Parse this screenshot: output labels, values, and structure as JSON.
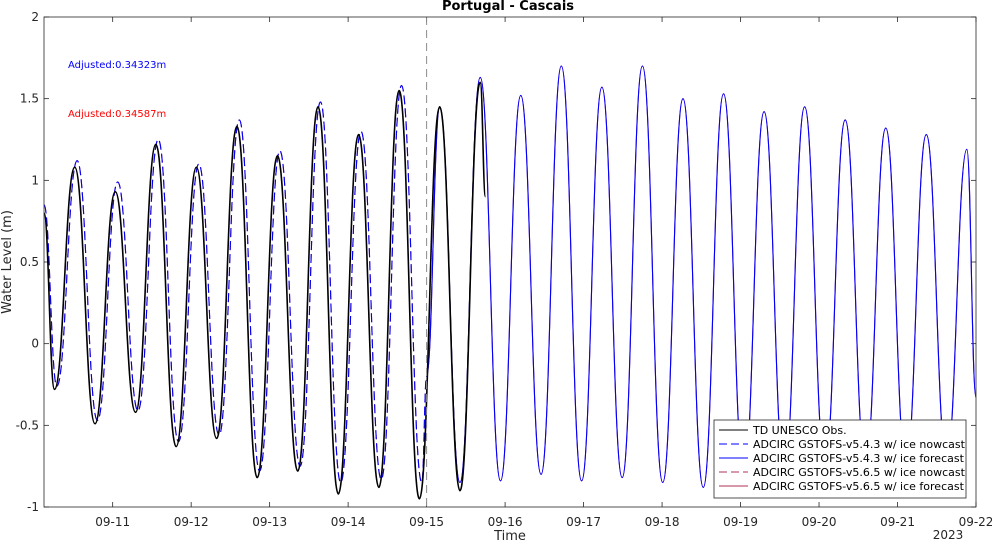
{
  "chart_data": {
    "type": "line",
    "title": "Portugal - Cascais",
    "xlabel": "Time",
    "ylabel": "Water Level (m)",
    "xlim": [
      "2023-09-10 03:00",
      "2023-09-22 00:00"
    ],
    "ylim": [
      -1,
      2
    ],
    "yticks": [
      "-1",
      "-0.5",
      "0",
      "0.5",
      "1",
      "1.5",
      "2"
    ],
    "xticks": [
      "09-11",
      "09-12",
      "09-13",
      "09-14",
      "09-15",
      "09-16",
      "09-17",
      "09-18",
      "09-19",
      "09-20",
      "09-21",
      "09-22"
    ],
    "year_label": "2023",
    "nowcast_end": "2023-09-15 00:00",
    "annotations": [
      {
        "text": "Adjusted:0.34323m",
        "color": "#0000ff"
      },
      {
        "text": "Adjusted:0.34587m",
        "color": "#ff0000"
      }
    ],
    "legend": {
      "location": "bottom-right",
      "entries": [
        {
          "label": "TD UNESCO Obs.",
          "color": "#000000",
          "dash": "solid"
        },
        {
          "label": "ADCIRC GSTOFS-v5.4.3 w/ ice nowcast",
          "color": "#0000ff",
          "dash": "dashed"
        },
        {
          "label": "ADCIRC GSTOFS-v5.4.3 w/ ice forecast",
          "color": "#0000ff",
          "dash": "solid"
        },
        {
          "label": "ADCIRC GSTOFS-v5.6.5 w/ ice nowcast",
          "color": "#b0305a",
          "dash": "dashed"
        },
        {
          "label": "ADCIRC GSTOFS-v5.6.5 w/ ice forecast",
          "color": "#b0305a",
          "dash": "solid"
        }
      ]
    },
    "series": [
      {
        "name": "TD UNESCO Obs.",
        "x": [
          "09-10 03:00",
          "09-10 06:12",
          "09-10 12:24",
          "09-10 18:36",
          "09-11 00:48",
          "09-11 07:00",
          "09-11 13:12",
          "09-11 19:24",
          "09-12 01:36",
          "09-12 07:48",
          "09-12 14:00",
          "09-12 20:12",
          "09-13 02:24",
          "09-13 08:36",
          "09-13 14:48",
          "09-13 21:00",
          "09-14 03:12",
          "09-14 09:24",
          "09-14 15:36",
          "09-14 21:48",
          "09-15 04:00",
          "09-15 10:12",
          "09-15 16:24",
          "09-15 18:00"
        ],
        "y": [
          0.8,
          -0.28,
          1.08,
          -0.49,
          0.93,
          -0.42,
          1.22,
          -0.63,
          1.08,
          -0.58,
          1.33,
          -0.82,
          1.15,
          -0.78,
          1.45,
          -0.92,
          1.28,
          -0.88,
          1.55,
          -0.95,
          1.45,
          -0.9,
          1.6,
          0.9
        ]
      },
      {
        "name": "ADCIRC GSTOFS-v5.4.3 w/ ice nowcast",
        "x": [
          "09-10 03:00",
          "09-10 06:56",
          "09-10 13:08",
          "09-10 19:20",
          "09-11 01:32",
          "09-11 07:44",
          "09-11 13:56",
          "09-11 20:08",
          "09-12 02:20",
          "09-12 08:32",
          "09-12 14:44",
          "09-12 20:56",
          "09-13 03:08",
          "09-13 09:20",
          "09-13 15:32",
          "09-13 21:44",
          "09-14 03:56",
          "09-14 10:08",
          "09-14 16:20",
          "09-14 22:32",
          "09-15 00:00"
        ],
        "y": [
          0.85,
          -0.26,
          1.12,
          -0.47,
          0.99,
          -0.41,
          1.25,
          -0.6,
          1.1,
          -0.56,
          1.37,
          -0.78,
          1.18,
          -0.75,
          1.48,
          -0.85,
          1.3,
          -0.83,
          1.58,
          -0.85,
          -0.2
        ]
      },
      {
        "name": "ADCIRC GSTOFS-v5.4.3 w/ ice forecast",
        "x": [
          "09-15 00:00",
          "09-15 04:00",
          "09-15 10:12",
          "09-15 16:24",
          "09-15 22:36",
          "09-16 04:48",
          "09-16 11:00",
          "09-16 17:12",
          "09-16 23:24",
          "09-17 05:36",
          "09-17 11:48",
          "09-17 18:00",
          "09-18 00:12",
          "09-18 06:24",
          "09-18 12:36",
          "09-18 18:48",
          "09-19 01:00",
          "09-19 07:12",
          "09-19 13:24",
          "09-19 19:36",
          "09-20 01:48",
          "09-20 08:00",
          "09-20 14:12",
          "09-20 20:24",
          "09-21 02:36",
          "09-21 08:48",
          "09-21 15:00",
          "09-21 21:12",
          "09-22 00:00"
        ],
        "y": [
          -0.2,
          1.45,
          -0.85,
          1.63,
          -0.84,
          1.52,
          -0.8,
          1.7,
          -0.84,
          1.57,
          -0.82,
          1.7,
          -0.85,
          1.5,
          -0.88,
          1.53,
          -0.82,
          1.42,
          -0.8,
          1.45,
          -0.75,
          1.37,
          -0.75,
          1.32,
          -0.75,
          1.28,
          -0.72,
          1.19,
          -0.33
        ]
      },
      {
        "name": "ADCIRC GSTOFS-v5.6.5 w/ ice nowcast",
        "x": [
          "09-10 03:00",
          "09-10 06:56",
          "09-10 13:08",
          "09-10 19:20",
          "09-11 01:32",
          "09-11 07:44",
          "09-11 13:56",
          "09-11 20:08",
          "09-12 02:20",
          "09-12 08:32",
          "09-12 14:44",
          "09-12 20:56",
          "09-13 03:08",
          "09-13 09:20",
          "09-13 15:32",
          "09-13 21:44",
          "09-14 03:56",
          "09-14 10:08",
          "09-14 16:20",
          "09-14 22:32",
          "09-15 00:00"
        ],
        "y": [
          0.85,
          -0.26,
          1.12,
          -0.47,
          0.99,
          -0.41,
          1.25,
          -0.6,
          1.1,
          -0.56,
          1.37,
          -0.78,
          1.18,
          -0.75,
          1.48,
          -0.85,
          1.3,
          -0.83,
          1.58,
          -0.85,
          -0.2
        ]
      },
      {
        "name": "ADCIRC GSTOFS-v5.6.5 w/ ice forecast",
        "x": [
          "09-15 00:00",
          "09-15 04:00",
          "09-15 10:12",
          "09-15 16:24",
          "09-15 22:36",
          "09-16 04:48",
          "09-16 11:00",
          "09-16 17:12",
          "09-16 23:24",
          "09-17 05:36",
          "09-17 11:48",
          "09-17 18:00",
          "09-18 00:12",
          "09-18 06:24",
          "09-18 12:36",
          "09-18 18:48",
          "09-19 01:00",
          "09-19 07:12",
          "09-19 13:24",
          "09-19 19:36",
          "09-20 01:48",
          "09-20 08:00",
          "09-20 14:12",
          "09-20 20:24",
          "09-21 02:36",
          "09-21 08:48",
          "09-21 15:00",
          "09-21 21:12",
          "09-22 00:00"
        ],
        "y": [
          -0.2,
          1.45,
          -0.85,
          1.63,
          -0.84,
          1.52,
          -0.8,
          1.7,
          -0.84,
          1.57,
          -0.82,
          1.7,
          -0.85,
          1.5,
          -0.88,
          1.53,
          -0.82,
          1.42,
          -0.8,
          1.45,
          -0.75,
          1.37,
          -0.75,
          1.32,
          -0.75,
          1.28,
          -0.72,
          1.19,
          -0.33
        ]
      }
    ]
  }
}
